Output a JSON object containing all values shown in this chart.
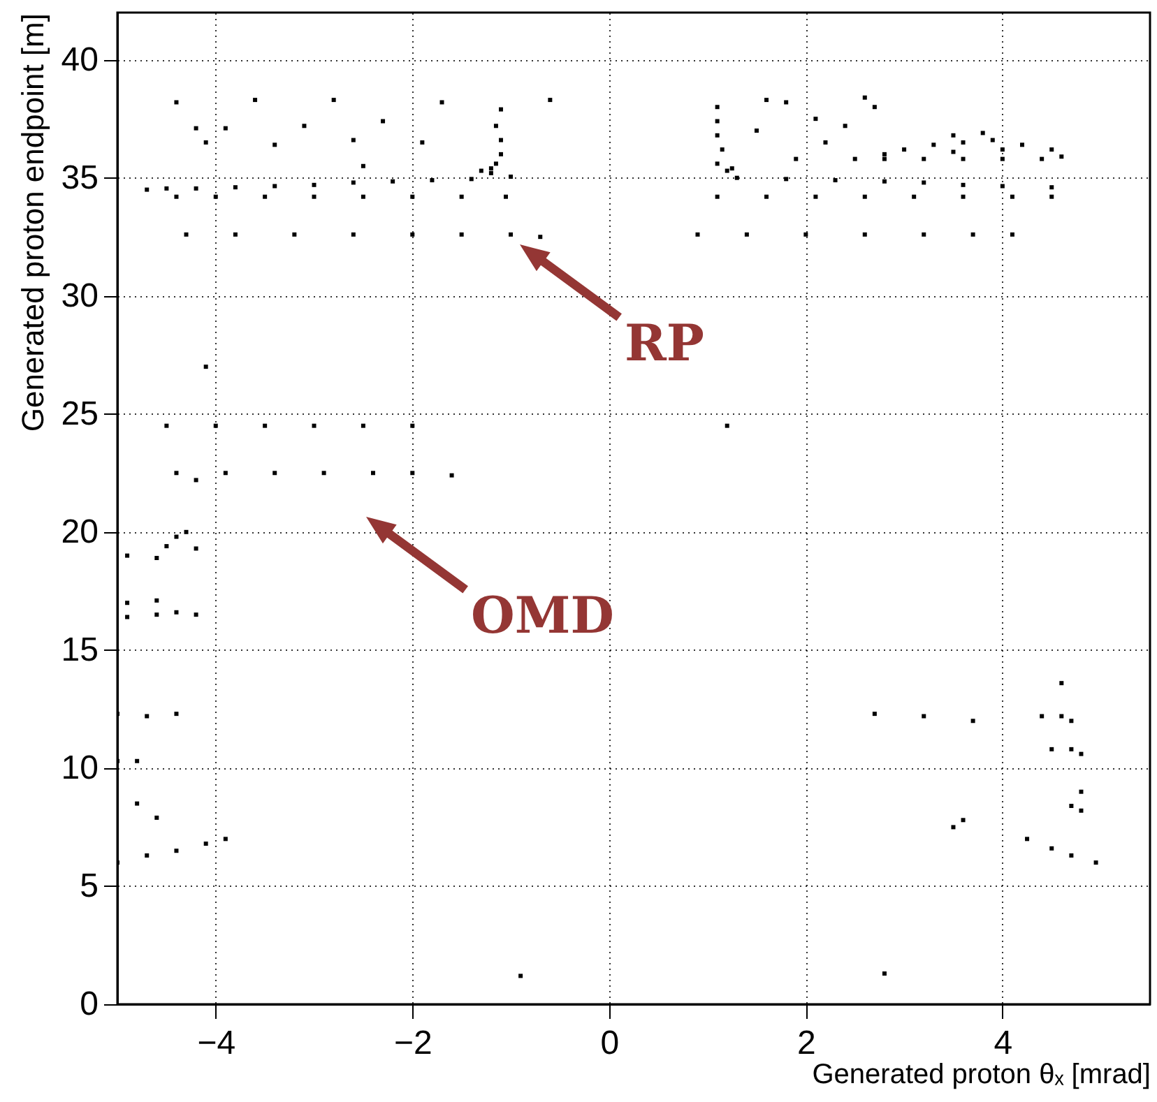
{
  "chart_data": {
    "type": "scatter",
    "xlabel": "Generated proton θₓ [mrad]",
    "ylabel": "Generated proton endpoint [m]",
    "xlim": [
      -5,
      5.5
    ],
    "ylim": [
      0,
      42
    ],
    "xticks": [
      -4,
      -2,
      0,
      2,
      4
    ],
    "yticks": [
      0,
      5,
      10,
      15,
      20,
      25,
      30,
      35,
      40
    ],
    "grid": true,
    "annotations": [
      "RP",
      "OMD"
    ],
    "series": [
      {
        "color": "#000000",
        "x": [
          -4.5,
          -4.2,
          -3.8,
          -3.4,
          -3.0,
          -2.6,
          -2.2,
          -1.8,
          -1.4,
          -1.0,
          -4.4,
          -4.0,
          -3.5,
          -3.0,
          -2.5,
          -2.0,
          -1.5,
          -1.05,
          -4.3,
          -3.8,
          -3.2,
          -2.6,
          -2.0,
          -1.5,
          -1.0,
          -0.7,
          -1.3,
          -1.2,
          -1.15,
          -1.2,
          -1.1,
          -1.1,
          -1.15,
          -1.1,
          -4.4,
          -3.6,
          -2.8,
          -4.2,
          -3.9,
          -3.1,
          -2.3,
          -2.6,
          -3.4,
          -4.1,
          -1.7,
          -1.9,
          -2.5,
          -0.6,
          -4.7,
          1.2,
          1.25,
          1.1,
          1.15,
          1.1,
          1.1,
          1.1,
          1.3,
          1.8,
          2.3,
          2.8,
          3.2,
          3.6,
          4.0,
          4.5,
          1.1,
          1.6,
          2.1,
          2.6,
          3.1,
          3.6,
          4.1,
          4.5,
          0.9,
          1.4,
          2.0,
          2.6,
          3.2,
          3.7,
          4.1,
          2.5,
          2.8,
          3.2,
          3.6,
          4.0,
          4.4,
          4.6,
          2.8,
          3.0,
          3.3,
          3.6,
          3.9,
          4.2,
          4.5,
          3.5,
          4.0,
          3.5,
          3.8,
          1.6,
          1.8,
          2.6,
          2.7,
          2.4,
          2.2,
          1.9,
          2.1,
          1.5,
          -4.5,
          -4.0,
          -3.5,
          -3.0,
          -2.5,
          -2.0,
          -4.4,
          -3.9,
          -3.4,
          -2.9,
          -2.4,
          -2.0,
          -4.2,
          -1.6,
          1.2,
          -4.1,
          -4.4,
          -4.3,
          -4.5,
          -4.6,
          -4.9,
          -4.2,
          -4.9,
          -4.6,
          -4.9,
          -4.6,
          -4.4,
          -4.2,
          -5.0,
          -4.7,
          -4.4,
          -5.0,
          -4.8,
          -5.0,
          -4.7,
          -4.4,
          -4.1,
          -3.9,
          -4.8,
          -4.6,
          4.4,
          4.6,
          4.7,
          4.5,
          4.7,
          4.8,
          4.6,
          3.7,
          3.2,
          2.7,
          4.8,
          4.8,
          4.7,
          4.25,
          4.5,
          4.7,
          4.95,
          3.6,
          3.5,
          2.8,
          -0.9
        ],
        "values": [
          34.55,
          34.55,
          34.6,
          34.65,
          34.7,
          34.8,
          34.85,
          34.9,
          34.95,
          35.05,
          34.2,
          34.2,
          34.2,
          34.2,
          34.2,
          34.2,
          34.2,
          34.2,
          32.6,
          32.6,
          32.6,
          32.6,
          32.6,
          32.6,
          32.6,
          32.5,
          35.3,
          35.4,
          35.6,
          35.2,
          36.0,
          36.6,
          37.2,
          37.9,
          38.2,
          38.3,
          38.3,
          37.1,
          37.1,
          37.2,
          37.4,
          36.6,
          36.4,
          36.5,
          38.2,
          36.5,
          35.5,
          38.3,
          34.5,
          35.3,
          35.4,
          35.6,
          36.2,
          36.8,
          37.4,
          38.0,
          35.0,
          34.95,
          34.9,
          34.85,
          34.8,
          34.7,
          34.65,
          34.6,
          34.2,
          34.2,
          34.2,
          34.2,
          34.2,
          34.2,
          34.2,
          34.2,
          32.6,
          32.6,
          32.6,
          32.6,
          32.6,
          32.6,
          32.6,
          35.8,
          35.8,
          35.8,
          35.8,
          35.8,
          35.8,
          35.9,
          36.0,
          36.2,
          36.4,
          36.5,
          36.6,
          36.4,
          36.2,
          36.1,
          36.2,
          36.8,
          36.9,
          38.3,
          38.2,
          38.4,
          38.0,
          37.2,
          36.5,
          35.8,
          37.5,
          37.0,
          24.5,
          24.5,
          24.5,
          24.5,
          24.5,
          24.5,
          22.5,
          22.5,
          22.5,
          22.5,
          22.5,
          22.5,
          22.2,
          22.4,
          24.5,
          27.0,
          19.8,
          20.0,
          19.4,
          18.9,
          19.0,
          19.3,
          17.0,
          17.1,
          16.4,
          16.5,
          16.6,
          16.5,
          12.3,
          12.2,
          12.3,
          10.3,
          10.3,
          6.0,
          6.3,
          6.5,
          6.8,
          7.0,
          8.5,
          7.9,
          12.2,
          12.2,
          12.0,
          10.8,
          10.8,
          10.6,
          13.6,
          12.0,
          12.2,
          12.3,
          9.0,
          8.2,
          8.4,
          7.0,
          6.6,
          6.3,
          6.0,
          7.8,
          7.5,
          1.3,
          1.2
        ]
      }
    ]
  }
}
